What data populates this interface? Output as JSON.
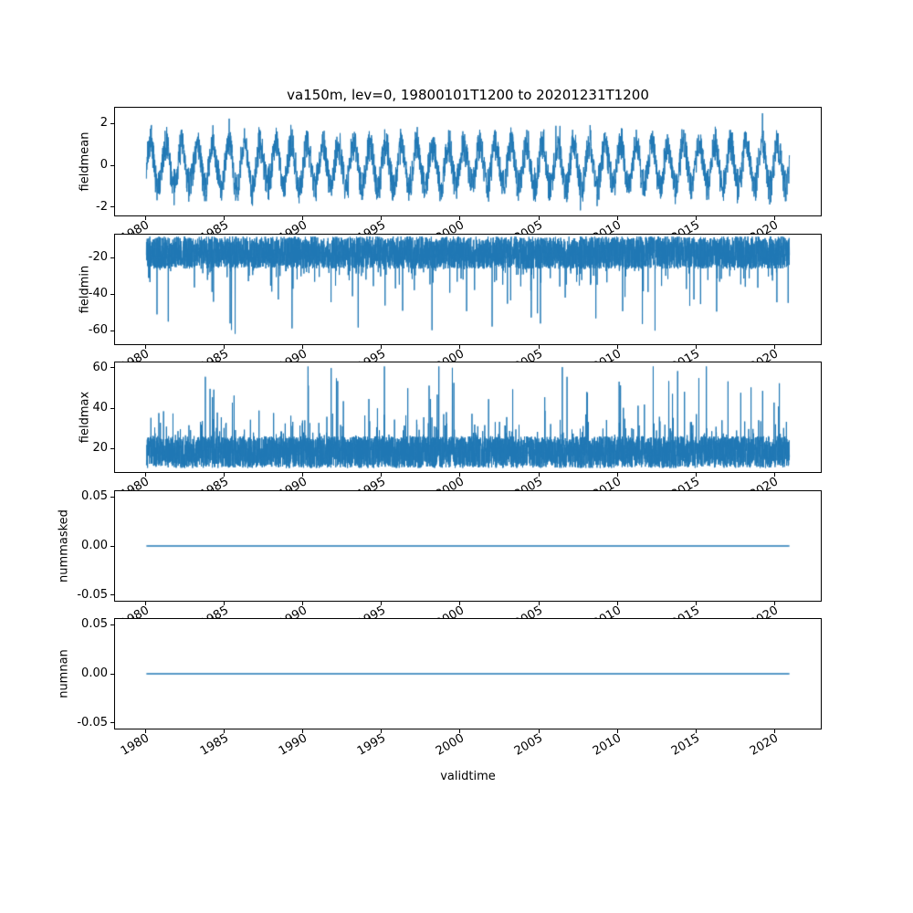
{
  "figure": {
    "title": "va150m, lev=0, 19800101T1200 to 20201231T1200",
    "xlabel": "validtime",
    "background": "#ffffff",
    "line_color": "#1f77b4",
    "xtick_values": [
      1980,
      1985,
      1990,
      1995,
      2000,
      2005,
      2010,
      2015,
      2020
    ],
    "xtick_labels": [
      "1980",
      "1985",
      "1990",
      "1995",
      "2000",
      "2005",
      "2010",
      "2015",
      "2020"
    ]
  },
  "chart_data": [
    {
      "type": "line",
      "ylabel": "fieldmean",
      "xlim": [
        1978.0,
        2023.0
      ],
      "ylim": [
        -2.45,
        2.8
      ],
      "yticks": [
        -2,
        0,
        2
      ],
      "ytick_labels": [
        "-2",
        "0",
        "2"
      ],
      "x_range": [
        1980.0,
        2021.0
      ],
      "grid": false,
      "series": [
        {
          "name": "fieldmean",
          "kind": "seasonal_noise",
          "amplitude": 1.05,
          "noise": 0.75,
          "clip": [
            -2.2,
            2.6
          ],
          "n": 3200,
          "description": "daily field mean oscillating seasonally between about -2 and 2.5"
        }
      ]
    },
    {
      "type": "line",
      "ylabel": "fieldmin",
      "xlim": [
        1978.0,
        2023.0
      ],
      "ylim": [
        -68,
        -7
      ],
      "yticks": [
        -60,
        -40,
        -20
      ],
      "ytick_labels": [
        "-60",
        "-40",
        "-20"
      ],
      "x_range": [
        1980.0,
        2021.0
      ],
      "grid": false,
      "series": [
        {
          "name": "fieldmin",
          "kind": "noise_spikes",
          "base": -17,
          "band": 18,
          "dir": -1,
          "spike_small_prob": 0.06,
          "spike_small": 14,
          "spike_large_prob": 0.01,
          "spike_large_min": 12,
          "spike_large_range": 30,
          "clip": -66,
          "n": 6000,
          "description": "field minimum, dense band around -10 to -28 with downward spikes to about -65"
        }
      ]
    },
    {
      "type": "line",
      "ylabel": "fieldmax",
      "xlim": [
        1978.0,
        2023.0
      ],
      "ylim": [
        8,
        63
      ],
      "yticks": [
        20,
        40,
        60
      ],
      "ytick_labels": [
        "20",
        "40",
        "60"
      ],
      "x_range": [
        1980.0,
        2021.0
      ],
      "grid": false,
      "series": [
        {
          "name": "fieldmax",
          "kind": "noise_spikes",
          "base": 18,
          "band": 16,
          "dir": 1,
          "spike_small_prob": 0.06,
          "spike_small": 14,
          "spike_large_prob": 0.01,
          "spike_large_min": 12,
          "spike_large_range": 30,
          "clip": 61,
          "n": 6000,
          "description": "field maximum, dense band around 11 to 28 with upward spikes to about 60"
        }
      ]
    },
    {
      "type": "line",
      "ylabel": "nummasked",
      "xlim": [
        1978.0,
        2023.0
      ],
      "ylim": [
        -0.057,
        0.057
      ],
      "yticks": [
        -0.05,
        0,
        0.05
      ],
      "ytick_labels": [
        "-0.05",
        "0.00",
        "0.05"
      ],
      "x_range": [
        1980.0,
        2021.0
      ],
      "grid": false,
      "series": [
        {
          "name": "nummasked",
          "kind": "constant",
          "value": 0,
          "n": 2,
          "description": "number of masked points, constant zero for whole period"
        }
      ]
    },
    {
      "type": "line",
      "ylabel": "numnan",
      "xlim": [
        1978.0,
        2023.0
      ],
      "ylim": [
        -0.057,
        0.057
      ],
      "yticks": [
        -0.05,
        0,
        0.05
      ],
      "ytick_labels": [
        "-0.05",
        "0.00",
        "0.05"
      ],
      "x_range": [
        1980.0,
        2021.0
      ],
      "grid": false,
      "series": [
        {
          "name": "numnan",
          "kind": "constant",
          "value": 0,
          "n": 2,
          "description": "number of NaN points, constant zero for whole period"
        }
      ]
    }
  ]
}
